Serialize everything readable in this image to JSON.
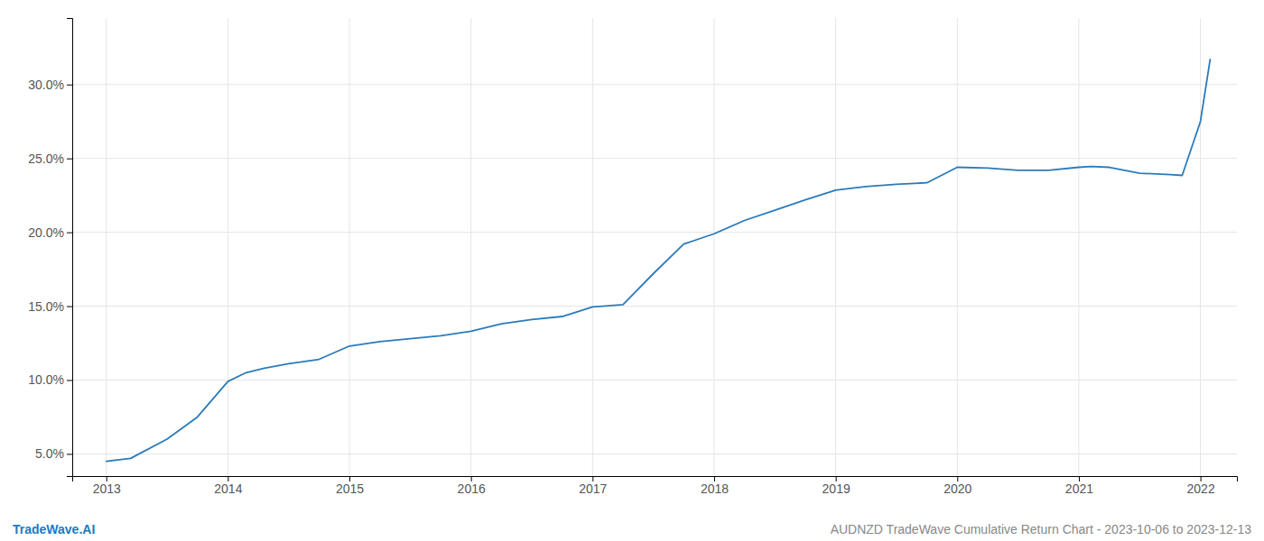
{
  "chart_data": {
    "type": "line",
    "x": [
      2013.0,
      2013.2,
      2013.5,
      2013.75,
      2014.0,
      2014.15,
      2014.3,
      2014.5,
      2014.75,
      2015.0,
      2015.25,
      2015.5,
      2015.75,
      2016.0,
      2016.25,
      2016.5,
      2016.75,
      2017.0,
      2017.08,
      2017.25,
      2017.5,
      2017.75,
      2018.0,
      2018.25,
      2018.5,
      2018.75,
      2019.0,
      2019.25,
      2019.5,
      2019.75,
      2020.0,
      2020.25,
      2020.5,
      2020.75,
      2021.0,
      2021.1,
      2021.25,
      2021.5,
      2021.75,
      2021.85,
      2022.0,
      2022.08
    ],
    "values": [
      4.5,
      4.7,
      6.0,
      7.5,
      9.9,
      10.5,
      10.8,
      11.1,
      11.4,
      12.3,
      12.6,
      12.8,
      13.0,
      13.3,
      13.8,
      14.1,
      14.3,
      14.95,
      15.0,
      15.1,
      17.2,
      19.2,
      19.9,
      20.8,
      21.5,
      22.2,
      22.85,
      23.1,
      23.25,
      23.35,
      24.4,
      24.35,
      24.2,
      24.2,
      24.4,
      24.45,
      24.4,
      24.0,
      23.9,
      23.85,
      27.5,
      31.7
    ],
    "color": "#2b7bba",
    "xlim": [
      2012.72,
      2022.3
    ],
    "ylim": [
      3.5,
      34.5
    ],
    "xticks": [
      2013,
      2014,
      2015,
      2016,
      2017,
      2018,
      2019,
      2020,
      2021,
      2022
    ],
    "yticks": [
      {
        "value": 5.0,
        "label": "5.0%"
      },
      {
        "value": 10.0,
        "label": "10.0%"
      },
      {
        "value": 15.0,
        "label": "15.0%"
      },
      {
        "value": 20.0,
        "label": "20.0%"
      },
      {
        "value": 25.0,
        "label": "25.0%"
      },
      {
        "value": 30.0,
        "label": "30.0%"
      }
    ],
    "grid": true,
    "annotations": [
      {
        "text": "TradeWave.AI",
        "color": "#1a7abf"
      },
      {
        "text": "AUDNZD TradeWave Cumulative Return Chart - 2023-10-06 to 2023-12-13",
        "color": "#888888"
      }
    ]
  }
}
